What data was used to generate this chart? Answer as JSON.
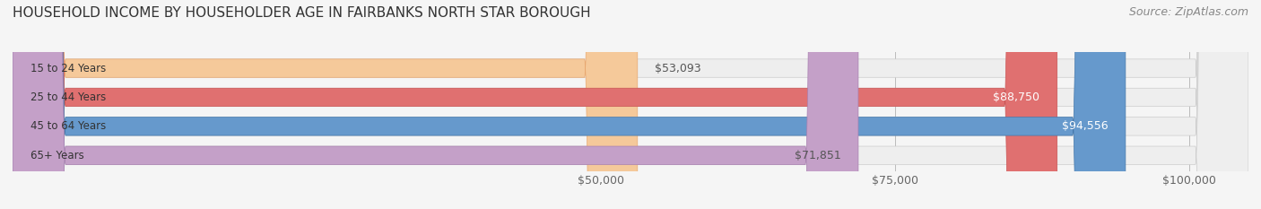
{
  "title": "HOUSEHOLD INCOME BY HOUSEHOLDER AGE IN FAIRBANKS NORTH STAR BOROUGH",
  "source": "Source: ZipAtlas.com",
  "categories": [
    "15 to 24 Years",
    "25 to 44 Years",
    "45 to 64 Years",
    "65+ Years"
  ],
  "values": [
    53093,
    88750,
    94556,
    71851
  ],
  "bar_colors": [
    "#f5c99a",
    "#e07070",
    "#6699cc",
    "#c4a0c8"
  ],
  "bar_edge_colors": [
    "#e8a870",
    "#c85555",
    "#4477aa",
    "#a880b0"
  ],
  "label_colors": [
    "#555555",
    "#ffffff",
    "#ffffff",
    "#555555"
  ],
  "value_labels": [
    "$53,093",
    "$88,750",
    "$94,556",
    "$71,851"
  ],
  "x_ticks": [
    50000,
    75000,
    100000
  ],
  "x_tick_labels": [
    "$50,000",
    "$75,000",
    "$100,000"
  ],
  "xlim": [
    0,
    105000
  ],
  "background_color": "#f5f5f5",
  "bar_background_color": "#eeeeee",
  "title_fontsize": 11,
  "source_fontsize": 9,
  "tick_fontsize": 9,
  "bar_label_fontsize": 9,
  "category_fontsize": 8.5
}
